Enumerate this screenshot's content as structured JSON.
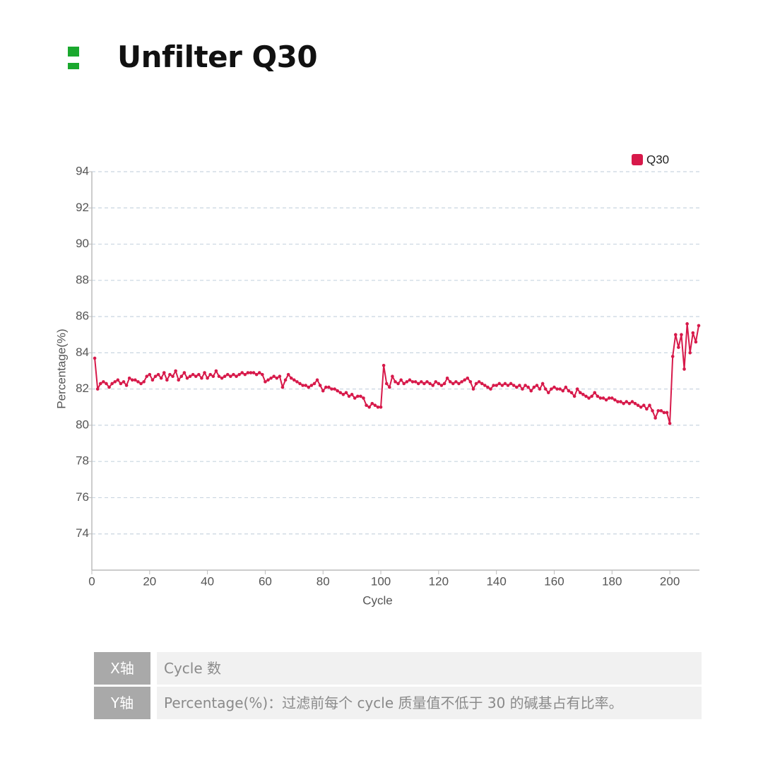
{
  "header": {
    "title": "Unfilter Q30"
  },
  "chart_data": {
    "type": "line",
    "x_label": "Cycle",
    "y_label": "Percentage(%)",
    "x": [
      1,
      2,
      3,
      4,
      5,
      6,
      7,
      8,
      9,
      10,
      11,
      12,
      13,
      14,
      15,
      16,
      17,
      18,
      19,
      20,
      21,
      22,
      23,
      24,
      25,
      26,
      27,
      28,
      29,
      30,
      31,
      32,
      33,
      34,
      35,
      36,
      37,
      38,
      39,
      40,
      41,
      42,
      43,
      44,
      45,
      46,
      47,
      48,
      49,
      50,
      51,
      52,
      53,
      54,
      55,
      56,
      57,
      58,
      59,
      60,
      61,
      62,
      63,
      64,
      65,
      66,
      67,
      68,
      69,
      70,
      71,
      72,
      73,
      74,
      75,
      76,
      77,
      78,
      79,
      80,
      81,
      82,
      83,
      84,
      85,
      86,
      87,
      88,
      89,
      90,
      91,
      92,
      93,
      94,
      95,
      96,
      97,
      98,
      99,
      100,
      101,
      102,
      103,
      104,
      105,
      106,
      107,
      108,
      109,
      110,
      111,
      112,
      113,
      114,
      115,
      116,
      117,
      118,
      119,
      120,
      121,
      122,
      123,
      124,
      125,
      126,
      127,
      128,
      129,
      130,
      131,
      132,
      133,
      134,
      135,
      136,
      137,
      138,
      139,
      140,
      141,
      142,
      143,
      144,
      145,
      146,
      147,
      148,
      149,
      150,
      151,
      152,
      153,
      154,
      155,
      156,
      157,
      158,
      159,
      160,
      161,
      162,
      163,
      164,
      165,
      166,
      167,
      168,
      169,
      170,
      171,
      172,
      173,
      174,
      175,
      176,
      177,
      178,
      179,
      180,
      181,
      182,
      183,
      184,
      185,
      186,
      187,
      188,
      189,
      190,
      191,
      192,
      193,
      194,
      195,
      196,
      197,
      198,
      199,
      200,
      201,
      202,
      203,
      204,
      205,
      206,
      207,
      208,
      209,
      210
    ],
    "series": [
      {
        "name": "Q30",
        "color": "#d7194a",
        "values": [
          83.7,
          82.0,
          82.3,
          82.4,
          82.3,
          82.1,
          82.3,
          82.4,
          82.5,
          82.3,
          82.4,
          82.2,
          82.6,
          82.5,
          82.5,
          82.4,
          82.3,
          82.4,
          82.7,
          82.8,
          82.5,
          82.7,
          82.8,
          82.6,
          82.9,
          82.5,
          82.8,
          82.7,
          83.0,
          82.5,
          82.7,
          82.9,
          82.6,
          82.7,
          82.8,
          82.7,
          82.8,
          82.6,
          82.9,
          82.6,
          82.8,
          82.7,
          83.0,
          82.7,
          82.6,
          82.7,
          82.8,
          82.7,
          82.8,
          82.7,
          82.8,
          82.9,
          82.8,
          82.9,
          82.9,
          82.9,
          82.8,
          82.9,
          82.8,
          82.4,
          82.5,
          82.6,
          82.7,
          82.6,
          82.7,
          82.1,
          82.5,
          82.8,
          82.6,
          82.5,
          82.4,
          82.3,
          82.2,
          82.2,
          82.1,
          82.2,
          82.3,
          82.5,
          82.2,
          81.9,
          82.1,
          82.1,
          82.0,
          82.0,
          81.9,
          81.8,
          81.7,
          81.8,
          81.6,
          81.7,
          81.5,
          81.6,
          81.6,
          81.5,
          81.1,
          81.0,
          81.2,
          81.1,
          81.0,
          81.0,
          83.3,
          82.3,
          82.1,
          82.7,
          82.4,
          82.3,
          82.5,
          82.3,
          82.4,
          82.5,
          82.4,
          82.4,
          82.3,
          82.4,
          82.3,
          82.4,
          82.3,
          82.2,
          82.4,
          82.3,
          82.2,
          82.3,
          82.6,
          82.4,
          82.3,
          82.4,
          82.3,
          82.4,
          82.5,
          82.6,
          82.4,
          82.0,
          82.3,
          82.4,
          82.3,
          82.2,
          82.1,
          82.0,
          82.2,
          82.2,
          82.3,
          82.2,
          82.3,
          82.2,
          82.3,
          82.2,
          82.1,
          82.2,
          82.0,
          82.2,
          82.1,
          81.9,
          82.1,
          82.2,
          82.0,
          82.3,
          82.0,
          81.8,
          82.0,
          82.1,
          82.0,
          82.0,
          81.9,
          82.1,
          81.9,
          81.8,
          81.6,
          82.0,
          81.8,
          81.7,
          81.6,
          81.5,
          81.6,
          81.8,
          81.6,
          81.5,
          81.5,
          81.4,
          81.5,
          81.5,
          81.4,
          81.3,
          81.3,
          81.2,
          81.3,
          81.2,
          81.3,
          81.2,
          81.1,
          81.0,
          81.1,
          80.9,
          81.1,
          80.8,
          80.4,
          80.8,
          80.8,
          80.7,
          80.7,
          80.1,
          83.8,
          85.0,
          84.3,
          85.0,
          83.1,
          85.6,
          84.0,
          85.1,
          84.6,
          85.5
        ]
      }
    ],
    "xlim": [
      0,
      210
    ],
    "xticks": [
      0,
      20,
      40,
      60,
      80,
      100,
      120,
      140,
      160,
      180,
      200
    ],
    "ylim": [
      72,
      94
    ],
    "yticks": [
      74,
      76,
      78,
      80,
      82,
      84,
      86,
      88,
      90,
      92,
      94
    ],
    "grid": true,
    "legend": "top-right"
  },
  "table": {
    "rows": [
      [
        "X轴",
        "Cycle 数"
      ],
      [
        "Y轴",
        "Percentage(%)：过滤前每个 cycle 质量值不低于 30 的碱基占有比率。"
      ]
    ]
  }
}
